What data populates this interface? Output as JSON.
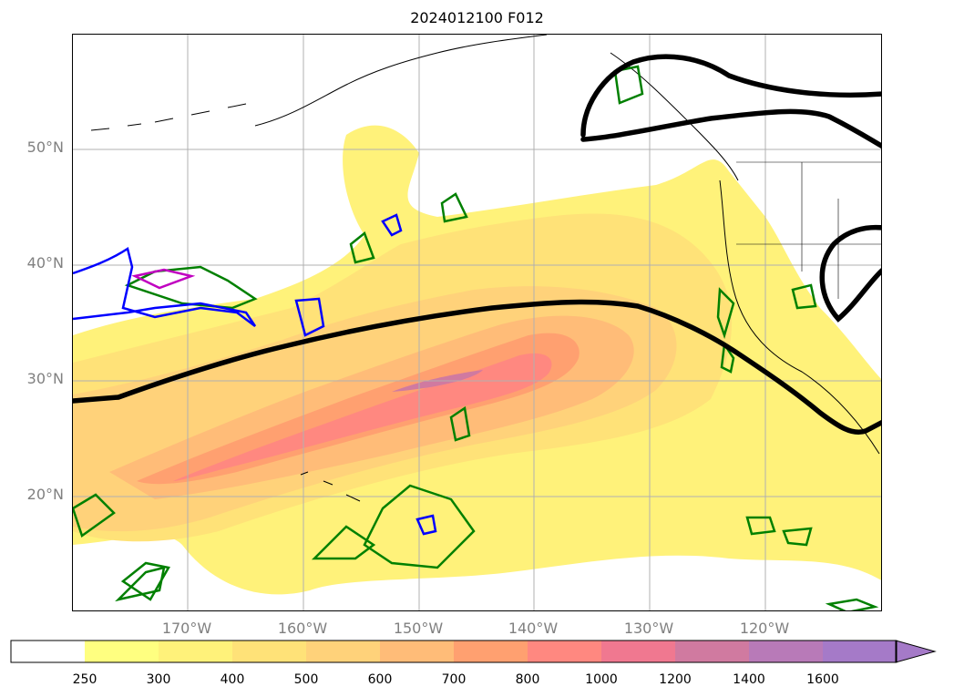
{
  "title": "2024012100 F012",
  "map": {
    "lat_ticks": [
      "50°N",
      "40°N",
      "30°N",
      "20°N"
    ],
    "lon_ticks": [
      "170°W",
      "160°W",
      "150°W",
      "140°W",
      "130°W",
      "120°W"
    ],
    "gridlines": true
  },
  "colorbar": {
    "tick_labels": [
      "250",
      "300",
      "400",
      "500",
      "600",
      "700",
      "800",
      "1000",
      "1200",
      "1400",
      "1600"
    ],
    "colors": [
      "#ffffff",
      "#ffff80",
      "#fff27a",
      "#ffe278",
      "#ffd27a",
      "#ffbc78",
      "#ffa070",
      "#ff8880",
      "#f07890",
      "#d07aa0",
      "#b87ab8",
      "#a57ac8"
    ],
    "extend": "max"
  },
  "contour_colors": {
    "jet_axis": "#000000",
    "green": "#008000",
    "blue": "#0000ff",
    "magenta": "#c000c0"
  }
}
